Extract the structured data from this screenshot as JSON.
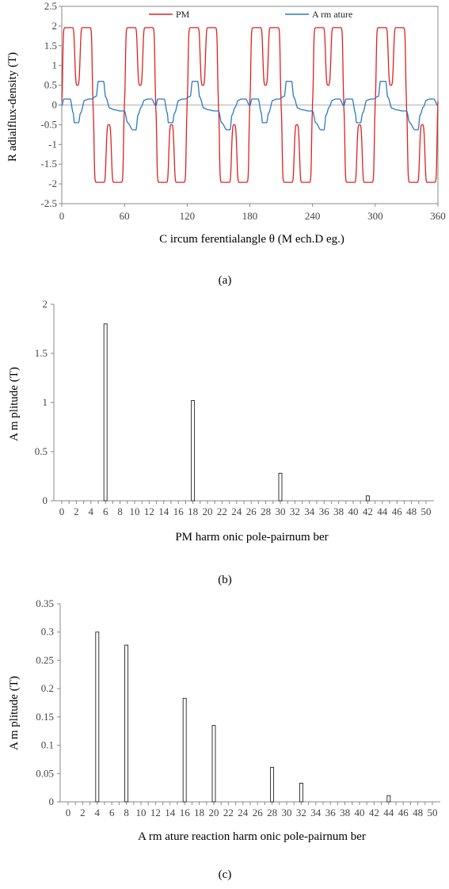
{
  "charts": [
    {
      "caption": "(a)",
      "chart_data": {
        "type": "line",
        "xlabel": "C ircum ferentialangle  θ (M ech.D eg.)",
        "ylabel": "R adialflux-density (T)",
        "xlim": [
          0,
          360
        ],
        "ylim": [
          -2.5,
          2.5
        ],
        "xticks": [
          "0",
          "60",
          "120",
          "180",
          "240",
          "300",
          "360"
        ],
        "yticks": [
          "-2.5",
          "-2",
          "-1.5",
          "-1",
          "-0.5",
          "0",
          "0.5",
          "1",
          "1.5",
          "2",
          "2.5"
        ],
        "grid": false,
        "legend": "top",
        "series": [
          {
            "name": "PM",
            "color": "#e02020",
            "description_peak": 1.95,
            "description_dip": 0.5
          },
          {
            "name": "A rm ature",
            "color": "#2a78c4",
            "description_peak": 0.6,
            "description_step": 0.15
          }
        ]
      }
    },
    {
      "caption": "(b)",
      "chart_data": {
        "type": "bar",
        "xlabel": "PM  harm onic pole-pairnum ber",
        "ylabel": "A m plitude (T)",
        "categories": [
          "0",
          "2",
          "4",
          "6",
          "8",
          "10",
          "12",
          "14",
          "16",
          "18",
          "20",
          "22",
          "24",
          "26",
          "28",
          "30",
          "32",
          "34",
          "36",
          "38",
          "40",
          "42",
          "44",
          "46",
          "48",
          "50"
        ],
        "ylim": [
          0,
          2
        ],
        "yticks": [
          "0",
          "0.5",
          "1",
          "1.5",
          "2"
        ],
        "bars": [
          {
            "x": 6,
            "value": 1.8
          },
          {
            "x": 18,
            "value": 1.02
          },
          {
            "x": 30,
            "value": 0.28
          },
          {
            "x": 42,
            "value": 0.05
          }
        ]
      }
    },
    {
      "caption": "(c)",
      "chart_data": {
        "type": "bar",
        "xlabel": "A rm ature reaction harm onic pole-pairnum ber",
        "ylabel": "A m plitude (T)",
        "categories": [
          "0",
          "2",
          "4",
          "6",
          "8",
          "10",
          "12",
          "14",
          "16",
          "18",
          "20",
          "22",
          "24",
          "26",
          "28",
          "30",
          "32",
          "34",
          "36",
          "38",
          "40",
          "42",
          "44",
          "46",
          "48",
          "50"
        ],
        "ylim": [
          0,
          0.35
        ],
        "yticks": [
          "0",
          "0.05",
          "0.1",
          "0.15",
          "0.2",
          "0.25",
          "0.3",
          "0.35"
        ],
        "bars": [
          {
            "x": 4,
            "value": 0.3
          },
          {
            "x": 8,
            "value": 0.277
          },
          {
            "x": 16,
            "value": 0.183
          },
          {
            "x": 20,
            "value": 0.135
          },
          {
            "x": 28,
            "value": 0.061
          },
          {
            "x": 32,
            "value": 0.033
          },
          {
            "x": 44,
            "value": 0.011
          }
        ]
      }
    }
  ]
}
